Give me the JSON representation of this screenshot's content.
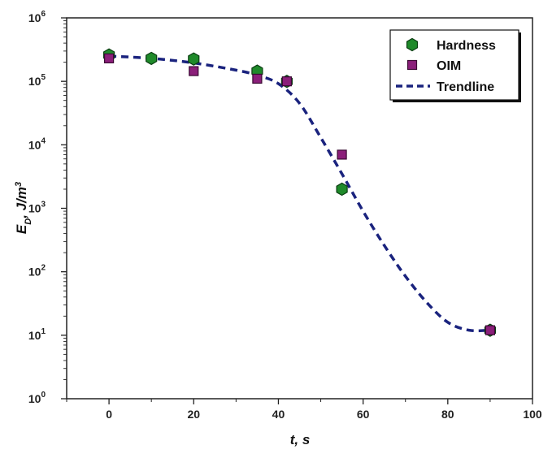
{
  "chart_data": {
    "type": "scatter",
    "xlabel": "t, s",
    "ylabel_main": "E",
    "ylabel_sub": "D",
    "ylabel_unit": ", J/m",
    "ylabel_sup": "3",
    "xlim": [
      -10,
      100
    ],
    "ylim": [
      1,
      1000000
    ],
    "yscale": "log",
    "x_ticks": [
      0,
      20,
      40,
      60,
      80,
      100
    ],
    "x_tick_labels": [
      "0",
      "20",
      "40",
      "60",
      "80",
      "100"
    ],
    "y_ticks": [
      1,
      10,
      100,
      1000,
      10000,
      100000,
      1000000
    ],
    "y_tick_labels": [
      {
        "base": "10",
        "exp": "0"
      },
      {
        "base": "10",
        "exp": "1"
      },
      {
        "base": "10",
        "exp": "2"
      },
      {
        "base": "10",
        "exp": "3"
      },
      {
        "base": "10",
        "exp": "4"
      },
      {
        "base": "10",
        "exp": "5"
      },
      {
        "base": "10",
        "exp": "6"
      }
    ],
    "grid": false,
    "legend_position": "top-right",
    "series": [
      {
        "name": "Hardness",
        "marker": "hexagon",
        "color": "#1f8a2a",
        "points": [
          [
            0,
            260000
          ],
          [
            10,
            230000
          ],
          [
            20,
            225000
          ],
          [
            35,
            145000
          ],
          [
            42,
            100000
          ],
          [
            55,
            2000
          ],
          [
            90,
            12
          ]
        ]
      },
      {
        "name": "OIM",
        "marker": "square",
        "color": "#8b1f7a",
        "points": [
          [
            0,
            230000
          ],
          [
            20,
            145000
          ],
          [
            35,
            110000
          ],
          [
            42,
            100000
          ],
          [
            55,
            7000
          ],
          [
            90,
            12
          ]
        ]
      },
      {
        "name": "Trendline",
        "style": "dashed",
        "color": "#1a237e",
        "points": [
          [
            0,
            250000
          ],
          [
            10,
            230000
          ],
          [
            20,
            195000
          ],
          [
            30,
            150000
          ],
          [
            35,
            125000
          ],
          [
            40,
            92000
          ],
          [
            45,
            45000
          ],
          [
            50,
            13000
          ],
          [
            55,
            3500
          ],
          [
            60,
            900
          ],
          [
            65,
            260
          ],
          [
            70,
            85
          ],
          [
            75,
            33
          ],
          [
            80,
            16
          ],
          [
            85,
            12
          ],
          [
            90,
            12
          ]
        ]
      }
    ]
  }
}
